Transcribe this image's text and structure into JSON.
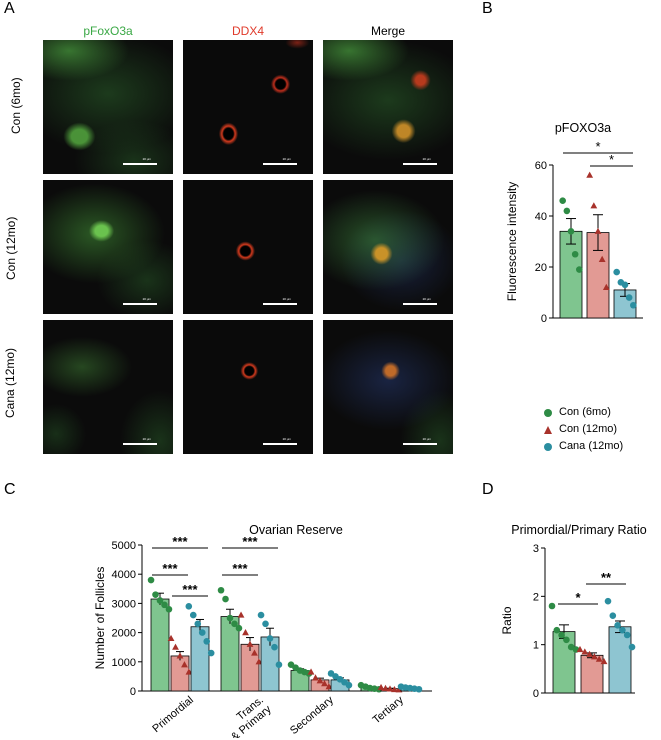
{
  "panels": {
    "a": "A",
    "b": "B",
    "c": "C",
    "d": "D"
  },
  "micrograph": {
    "columns": [
      "pFoxO3a",
      "DDX4",
      "Merge"
    ],
    "column_colors": [
      "#3aa845",
      "#e03a2a",
      "#000000"
    ],
    "rows": [
      "Con (6mo)",
      "Con (12mo)",
      "Cana (12mo)"
    ],
    "scale_bar": "20 μm"
  },
  "legend": [
    "Con (6mo)",
    "Con (12mo)",
    "Cana (12mo)"
  ],
  "colors": {
    "con6": "#7fc58f",
    "con12": "#e29a94",
    "cana": "#8ec5d1",
    "con6_dot": "#2e8b45",
    "con12_dot": "#a8322b",
    "cana_dot": "#2b8ea0"
  },
  "chart_data": [
    {
      "id": "B",
      "type": "bar",
      "title": "pFOXO3a",
      "xlabel": "",
      "ylabel": "Fluorescence intensity",
      "ylim": [
        0,
        60
      ],
      "yticks": [
        0,
        20,
        40,
        60
      ],
      "categories": [
        "Con (6mo)",
        "Con (12mo)",
        "Cana (12mo)"
      ],
      "values": [
        34,
        33.5,
        11
      ],
      "errors": [
        5,
        7,
        2.5
      ],
      "points": [
        [
          46,
          42,
          34,
          25,
          19
        ],
        [
          56,
          44,
          34,
          23,
          12
        ],
        [
          18,
          14,
          13,
          8,
          5
        ]
      ],
      "markers": [
        "circle",
        "triangle",
        "circle"
      ],
      "significance": [
        {
          "from": 0,
          "to": 2,
          "label": "*"
        },
        {
          "from": 1,
          "to": 2,
          "label": "*"
        }
      ]
    },
    {
      "id": "C",
      "type": "bar",
      "title": "Ovarian Reserve",
      "xlabel": "",
      "ylabel": "Number of Follicles",
      "ylim": [
        0,
        5000
      ],
      "yticks": [
        0,
        1000,
        2000,
        3000,
        4000,
        5000
      ],
      "categories": [
        "Primordial",
        "Trans.\n& Primary",
        "Secondary",
        "Tertiary"
      ],
      "series": [
        {
          "name": "Con (6mo)",
          "values": [
            3150,
            2550,
            700,
            120
          ],
          "errors": [
            200,
            250,
            60,
            20
          ],
          "points": [
            [
              3800,
              3300,
              3100,
              2950,
              2800
            ],
            [
              3450,
              3150,
              2500,
              2300,
              2150
            ],
            [
              900,
              800,
              700,
              650,
              600
            ],
            [
              200,
              150,
              100,
              80,
              60
            ]
          ]
        },
        {
          "name": "Con (12mo)",
          "values": [
            1200,
            1600,
            380,
            80
          ],
          "errors": [
            150,
            230,
            60,
            15
          ],
          "points": [
            [
              1800,
              1500,
              1200,
              900,
              650
            ],
            [
              2600,
              2000,
              1600,
              1300,
              1000
            ],
            [
              650,
              450,
              350,
              250,
              150
            ],
            [
              120,
              90,
              70,
              50,
              40
            ]
          ]
        },
        {
          "name": "Cana (12mo)",
          "values": [
            2200,
            1850,
            380,
            110
          ],
          "errors": [
            250,
            300,
            70,
            15
          ],
          "points": [
            [
              2900,
              2600,
              2300,
              2000,
              1700,
              1300
            ],
            [
              2600,
              2300,
              1800,
              1500,
              900
            ],
            [
              600,
              500,
              400,
              300,
              200
            ],
            [
              150,
              120,
              100,
              80,
              60
            ]
          ]
        }
      ],
      "significance": [
        {
          "group": 0,
          "from": 0,
          "to": 1,
          "label": "***"
        },
        {
          "group": 0,
          "from": 0,
          "to": 2,
          "label": "***"
        },
        {
          "group": 0,
          "from": 1,
          "to": 2,
          "label": "***"
        },
        {
          "group": 1,
          "from": 0,
          "to": 1,
          "label": "***"
        },
        {
          "group": 1,
          "from": 0,
          "to": 2,
          "label": "***"
        }
      ]
    },
    {
      "id": "D",
      "type": "bar",
      "title": "Primordial/Primary Ratio",
      "xlabel": "",
      "ylabel": "Ratio",
      "ylim": [
        0,
        3
      ],
      "yticks": [
        0,
        1,
        2,
        3
      ],
      "categories": [
        "Con (6mo)",
        "Con (12mo)",
        "Cana (12mo)"
      ],
      "values": [
        1.27,
        0.78,
        1.37
      ],
      "errors": [
        0.14,
        0.05,
        0.12
      ],
      "points": [
        [
          1.8,
          1.3,
          1.2,
          1.1,
          0.95,
          0.9
        ],
        [
          0.9,
          0.85,
          0.8,
          0.75,
          0.7,
          0.65
        ],
        [
          1.9,
          1.6,
          1.4,
          1.3,
          1.2,
          0.95
        ]
      ],
      "significance": [
        {
          "from": 0,
          "to": 1,
          "label": "*"
        },
        {
          "from": 1,
          "to": 2,
          "label": "**"
        }
      ]
    }
  ]
}
